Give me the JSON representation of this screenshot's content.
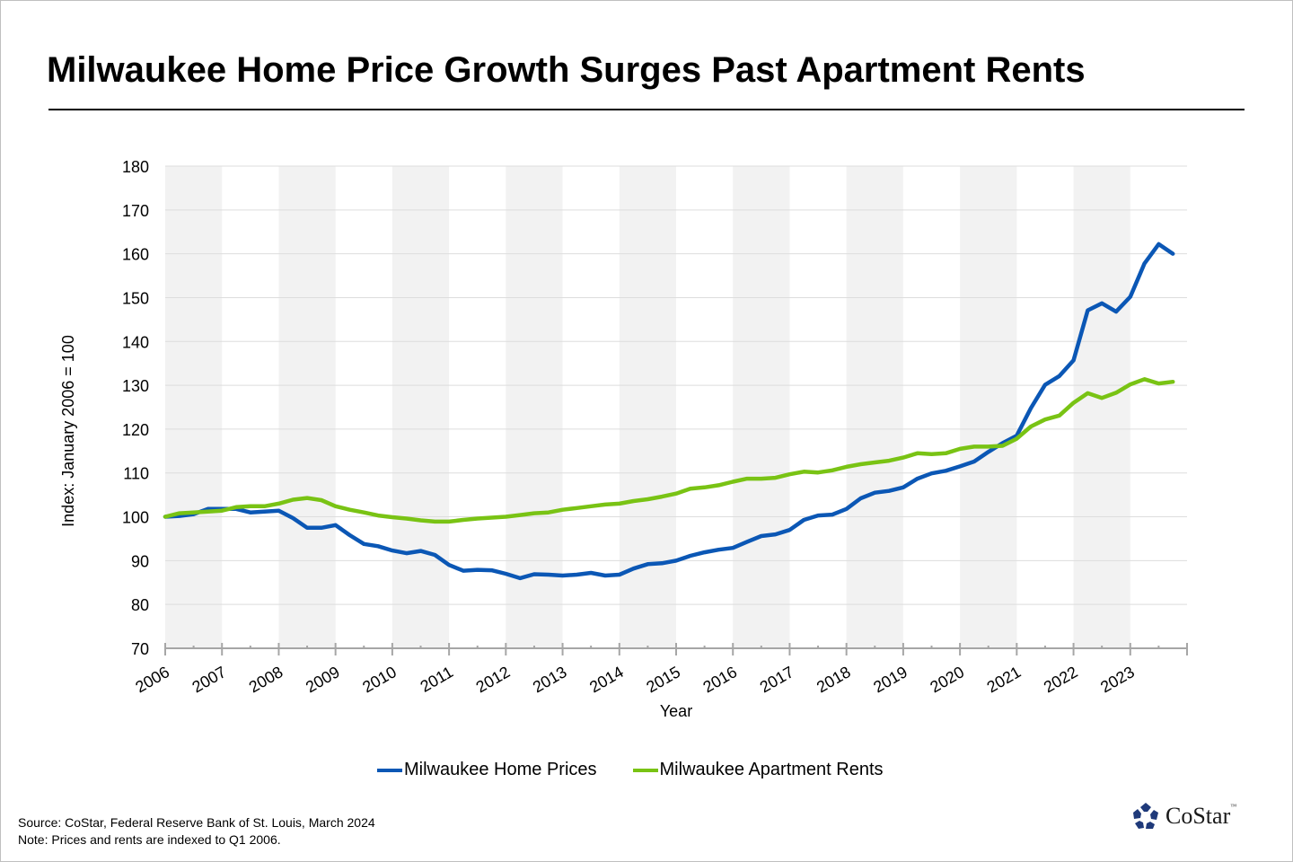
{
  "title": "Milwaukee Home Price Growth Surges Past Apartment Rents",
  "legend": {
    "home_prices": "Milwaukee Home Prices",
    "apartment_rents": "Milwaukee Apartment Rents"
  },
  "footer": {
    "source": "Source: CoStar, Federal Reserve Bank of St. Louis, March 2024",
    "note": "Note: Prices and rents are indexed to Q1 2006."
  },
  "logo": {
    "text": "CoStar",
    "tm": "™"
  },
  "colors": {
    "home_prices": "#0b57b5",
    "apartment_rents": "#79c314",
    "band": "#f2f2f2",
    "grid": "#dddddd",
    "axis": "#a6a6a6"
  },
  "chart_data": {
    "type": "line",
    "title": "Milwaukee Home Price Growth Surges Past Apartment Rents",
    "xlabel": "Year",
    "ylabel": "Index: January 2006 = 100",
    "xlim": [
      2006,
      2024
    ],
    "ylim": [
      70,
      180
    ],
    "y_ticks": [
      70,
      80,
      90,
      100,
      110,
      120,
      130,
      140,
      150,
      160,
      170,
      180
    ],
    "x_tick_labels": [
      "2006",
      "2007",
      "2008",
      "2009",
      "2010",
      "2011",
      "2012",
      "2013",
      "2014",
      "2015",
      "2016",
      "2017",
      "2018",
      "2019",
      "2020",
      "2021",
      "2022",
      "2023"
    ],
    "grid": true,
    "alternating_year_bands": true,
    "legend_position": "bottom",
    "frequency": "quarterly",
    "x_start": 2006.0,
    "x_step": 0.25,
    "series": [
      {
        "name": "Milwaukee Home Prices",
        "color": "#0b57b5",
        "values": [
          100,
          100.2,
          100.6,
          101.8,
          101.8,
          101.8,
          101,
          101.2,
          101.4,
          99.7,
          97.5,
          97.5,
          98.1,
          95.8,
          93.8,
          93.3,
          92.3,
          91.7,
          92.2,
          91.3,
          89,
          87.7,
          87.9,
          87.8,
          87,
          86,
          86.9,
          86.8,
          86.6,
          86.8,
          87.2,
          86.6,
          86.8,
          88.2,
          89.2,
          89.4,
          90,
          91.1,
          91.9,
          92.5,
          92.9,
          94.3,
          95.6,
          96,
          97,
          99.3,
          100.3,
          100.5,
          101.8,
          104.2,
          105.5,
          105.9,
          106.7,
          108.7,
          109.9,
          110.5,
          111.5,
          112.6,
          114.8,
          116.8,
          118.5,
          124.8,
          130.1,
          132.1,
          135.7,
          147.1,
          148.7,
          146.8,
          150.2,
          157.8,
          162.2,
          160
        ]
      },
      {
        "name": "Milwaukee Apartment Rents",
        "color": "#79c314",
        "values": [
          100,
          100.8,
          101,
          101.2,
          101.4,
          102.2,
          102.4,
          102.4,
          103,
          103.9,
          104.3,
          103.8,
          102.4,
          101.6,
          101,
          100.3,
          99.9,
          99.6,
          99.2,
          98.9,
          98.9,
          99.3,
          99.6,
          99.8,
          100,
          100.4,
          100.8,
          101,
          101.6,
          102,
          102.4,
          102.8,
          103,
          103.6,
          104,
          104.6,
          105.3,
          106.4,
          106.7,
          107.2,
          108,
          108.7,
          108.7,
          108.9,
          109.7,
          110.3,
          110.1,
          110.6,
          111.4,
          112,
          112.4,
          112.8,
          113.5,
          114.5,
          114.3,
          114.5,
          115.5,
          116,
          116,
          116.2,
          117.8,
          120.6,
          122.2,
          123.1,
          126,
          128.2,
          127.1,
          128.3,
          130.2,
          131.4,
          130.4,
          130.8
        ]
      }
    ]
  }
}
